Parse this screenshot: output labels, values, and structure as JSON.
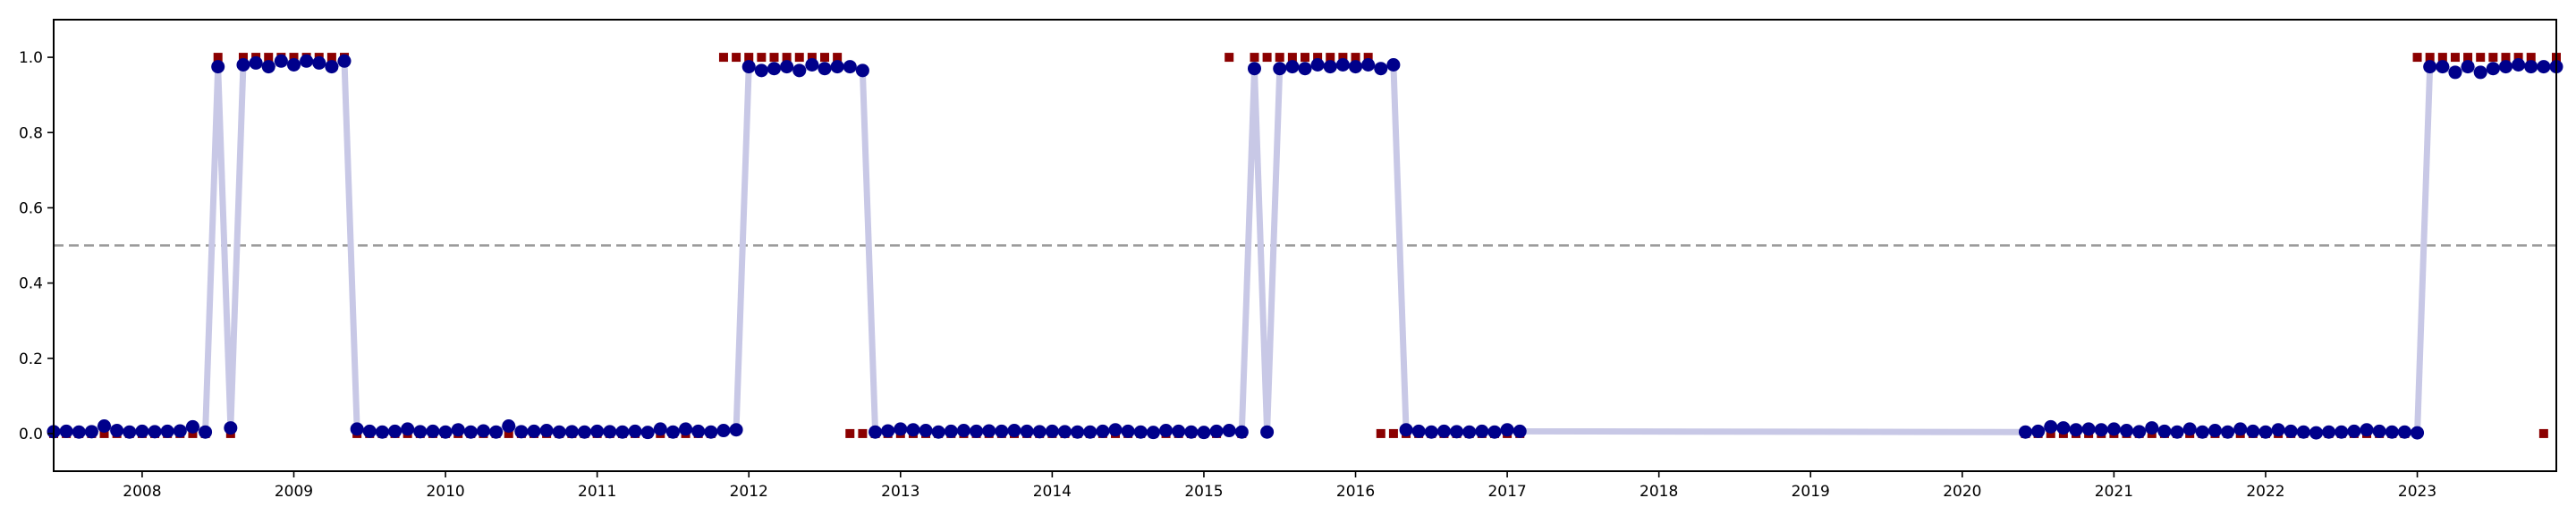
{
  "chart_data": {
    "type": "line",
    "title": "",
    "xlabel": "",
    "ylabel": "",
    "xlim": [
      "2007-06-01",
      "2023-12-01"
    ],
    "ylim": [
      -0.1,
      1.1
    ],
    "grid": false,
    "legend": "none",
    "threshold": 0.5,
    "x_ticks": [
      "2008",
      "2009",
      "2010",
      "2011",
      "2012",
      "2013",
      "2014",
      "2015",
      "2016",
      "2017",
      "2018",
      "2019",
      "2020",
      "2021",
      "2022",
      "2023"
    ],
    "y_ticks": [
      "0.0",
      "0.2",
      "0.4",
      "0.6",
      "0.8",
      "1.0"
    ],
    "colors": {
      "line": "#c8c8e6",
      "actual_marker": "#8b0000",
      "predicted_marker": "#00008b",
      "threshold": "#999999",
      "axes": "#000000"
    },
    "series": [
      {
        "x": [
          "2007-06",
          "2007-07",
          "2007-08",
          "2007-09",
          "2007-10",
          "2007-11",
          "2007-12",
          "2008-01",
          "2008-02",
          "2008-03",
          "2008-04",
          "2008-05",
          "2008-06",
          "2008-07",
          "2008-08",
          "2008-09",
          "2008-10",
          "2008-11",
          "2008-12",
          "2009-01",
          "2009-02",
          "2009-03",
          "2009-04",
          "2009-05",
          "2009-06",
          "2009-07",
          "2009-08",
          "2009-09",
          "2009-10",
          "2009-11",
          "2009-12",
          "2010-01",
          "2010-02",
          "2010-03",
          "2010-04",
          "2010-05",
          "2010-06",
          "2010-07",
          "2010-08",
          "2010-09",
          "2010-10",
          "2010-11",
          "2010-12",
          "2011-01",
          "2011-02",
          "2011-03",
          "2011-04",
          "2011-05",
          "2011-06",
          "2011-07",
          "2011-08",
          "2011-09",
          "2011-10",
          "2011-11",
          "2011-12",
          "2012-01",
          "2012-02",
          "2012-03",
          "2012-04",
          "2012-05",
          "2012-06",
          "2012-07",
          "2012-08",
          "2012-09",
          "2012-10",
          "2012-11",
          "2012-12",
          "2013-01",
          "2013-02",
          "2013-03",
          "2013-04",
          "2013-05",
          "2013-06",
          "2013-07",
          "2013-08",
          "2013-09",
          "2013-10",
          "2013-11",
          "2013-12",
          "2014-01",
          "2014-02",
          "2014-03",
          "2014-04",
          "2014-05",
          "2014-06",
          "2014-07",
          "2014-08",
          "2014-09",
          "2014-10",
          "2014-11",
          "2014-12",
          "2015-01",
          "2015-02",
          "2015-03",
          "2015-04",
          "2015-05",
          "2015-06",
          "2015-07",
          "2015-08",
          "2015-09",
          "2015-10",
          "2015-11",
          "2015-12",
          "2016-01",
          "2016-02",
          "2016-03",
          "2016-04",
          "2016-05",
          "2016-06",
          "2016-07",
          "2016-08",
          "2016-09",
          "2016-10",
          "2016-11",
          "2016-12",
          "2017-01",
          "2017-02",
          "2020-06",
          "2020-07",
          "2020-08",
          "2020-09",
          "2020-10",
          "2020-11",
          "2020-12",
          "2021-01",
          "2021-02",
          "2021-03",
          "2021-04",
          "2021-05",
          "2021-06",
          "2021-07",
          "2021-08",
          "2021-09",
          "2021-10",
          "2021-11",
          "2021-12",
          "2022-01",
          "2022-02",
          "2022-03",
          "2022-04",
          "2022-05",
          "2022-06",
          "2022-07",
          "2022-08",
          "2022-09",
          "2022-10",
          "2022-11",
          "2022-12",
          "2023-01",
          "2023-02",
          "2023-03",
          "2023-04",
          "2023-05",
          "2023-06",
          "2023-07",
          "2023-08",
          "2023-09",
          "2023-10",
          "2023-11",
          "2023-12"
        ],
        "actual": [
          0,
          0,
          0,
          0,
          0,
          0,
          0,
          0,
          0,
          0,
          0,
          0,
          0,
          1,
          0,
          1,
          1,
          1,
          1,
          1,
          1,
          1,
          1,
          1,
          0,
          0,
          0,
          0,
          0,
          0,
          0,
          0,
          0,
          0,
          0,
          0,
          0,
          0,
          0,
          0,
          0,
          0,
          0,
          0,
          0,
          0,
          0,
          0,
          0,
          0,
          0,
          0,
          0,
          1,
          1,
          1,
          1,
          1,
          1,
          1,
          1,
          1,
          1,
          0,
          0,
          0,
          0,
          0,
          0,
          0,
          0,
          0,
          0,
          0,
          0,
          0,
          0,
          0,
          0,
          0,
          0,
          0,
          0,
          0,
          0,
          0,
          0,
          0,
          0,
          0,
          0,
          0,
          0,
          1,
          0,
          1,
          1,
          1,
          1,
          1,
          1,
          1,
          1,
          1,
          1,
          0,
          0,
          0,
          0,
          0,
          0,
          0,
          0,
          0,
          0,
          0,
          0,
          0,
          0,
          0,
          0,
          0,
          0,
          0,
          0,
          0,
          0,
          0,
          0,
          0,
          0,
          0,
          0,
          0,
          0,
          0,
          0,
          0,
          0,
          0,
          0,
          0,
          0,
          0,
          0,
          0,
          0,
          0,
          1,
          1,
          1,
          1,
          1,
          1,
          1,
          1,
          1,
          1,
          0,
          1,
          0,
          0
        ],
        "predicted": [
          0.005,
          0.006,
          0.004,
          0.005,
          0.02,
          0.008,
          0.004,
          0.006,
          0.005,
          0.006,
          0.007,
          0.018,
          0.004,
          0.975,
          0.015,
          0.98,
          0.985,
          0.975,
          0.99,
          0.98,
          0.99,
          0.985,
          0.975,
          0.99,
          0.012,
          0.006,
          0.004,
          0.006,
          0.012,
          0.005,
          0.006,
          0.004,
          0.01,
          0.004,
          0.007,
          0.004,
          0.02,
          0.005,
          0.006,
          0.008,
          0.004,
          0.005,
          0.004,
          0.006,
          0.005,
          0.004,
          0.006,
          0.003,
          0.012,
          0.004,
          0.012,
          0.006,
          0.004,
          0.008,
          0.01,
          0.975,
          0.965,
          0.97,
          0.975,
          0.965,
          0.98,
          0.97,
          0.975,
          0.975,
          0.965,
          0.004,
          0.007,
          0.012,
          0.01,
          0.008,
          0.004,
          0.006,
          0.008,
          0.006,
          0.007,
          0.006,
          0.008,
          0.006,
          0.005,
          0.006,
          0.005,
          0.004,
          0.004,
          0.006,
          0.01,
          0.006,
          0.004,
          0.003,
          0.008,
          0.006,
          0.004,
          0.003,
          0.006,
          0.008,
          0.004,
          0.97,
          0.004,
          0.97,
          0.975,
          0.97,
          0.98,
          0.975,
          0.98,
          0.975,
          0.98,
          0.97,
          0.98,
          0.01,
          0.006,
          0.004,
          0.006,
          0.005,
          0.004,
          0.006,
          0.004,
          0.01,
          0.006,
          0.004,
          0.006,
          0.018,
          0.015,
          0.01,
          0.012,
          0.01,
          0.012,
          0.008,
          0.005,
          0.015,
          0.006,
          0.004,
          0.012,
          0.004,
          0.008,
          0.004,
          0.012,
          0.006,
          0.004,
          0.01,
          0.006,
          0.004,
          0.002,
          0.004,
          0.004,
          0.006,
          0.01,
          0.006,
          0.004,
          0.004,
          0.002,
          0.975,
          0.975,
          0.96,
          0.975,
          0.96,
          0.97,
          0.975,
          0.98,
          0.975,
          0.975,
          0.975,
          0.01,
          0.975,
          0.005,
          0.005
        ]
      }
    ]
  }
}
